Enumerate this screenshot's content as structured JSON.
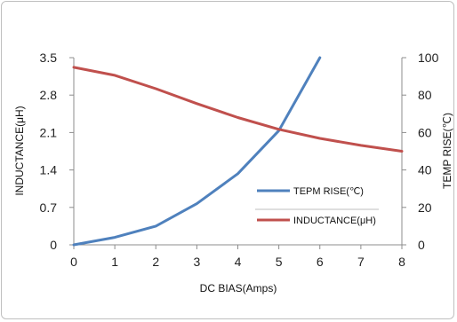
{
  "chart_data": {
    "type": "line",
    "x": [
      0,
      1,
      2,
      3,
      4,
      5,
      6,
      7,
      8
    ],
    "xlabel": "DC  BIAS(Amps)",
    "xlim": [
      0,
      8
    ],
    "x_ticks": [
      "0",
      "1",
      "2",
      "3",
      "4",
      "5",
      "6",
      "7",
      "8"
    ],
    "ylabel_left": "INDUCTANCE(μH)",
    "ylim_left": [
      0,
      3.5
    ],
    "y_ticks_left": [
      "0",
      "0.7",
      "1.4",
      "2.1",
      "2.8",
      "3.5"
    ],
    "ylabel_right": "TEMP RISE(℃)",
    "ylim_right": [
      0,
      100
    ],
    "y_ticks_right": [
      "0",
      "20",
      "40",
      "60",
      "80",
      "100"
    ],
    "grid": false,
    "legend_position": "right",
    "series": [
      {
        "name": "TEPM RISE(℃)",
        "axis": "right",
        "color": "#4f81bd",
        "x": [
          0,
          1,
          2,
          3,
          4,
          5,
          6
        ],
        "values": [
          0,
          4,
          10,
          22,
          38,
          61,
          100
        ]
      },
      {
        "name": "INDUCTANCE(μH)",
        "axis": "left",
        "color": "#c0504d",
        "x": [
          0,
          1,
          2,
          3,
          4,
          5,
          6,
          7,
          8
        ],
        "values": [
          3.32,
          3.17,
          2.92,
          2.64,
          2.38,
          2.16,
          1.99,
          1.86,
          1.75
        ]
      }
    ]
  }
}
